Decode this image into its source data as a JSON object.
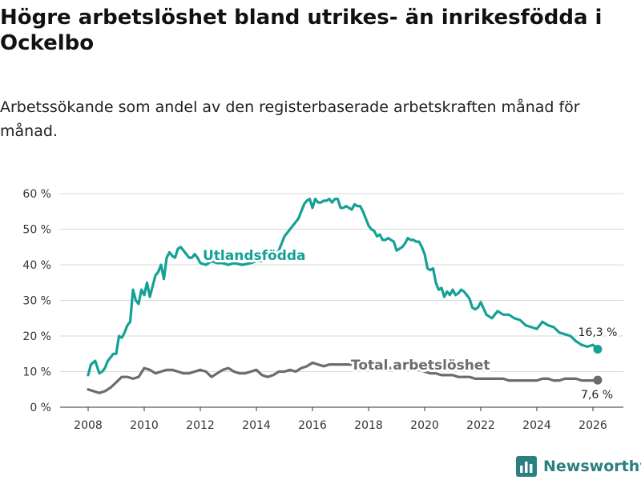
{
  "title": "Högre arbetslöshet bland utrikes- än inrikesfödda i Ockelbo",
  "subtitle": "Arbetssökande som andel av den registerbaserade arbetskraften månad för månad.",
  "brand": {
    "name": "Newsworthy",
    "icon": "newsworthy-logo-icon"
  },
  "colors": {
    "foreign_born": "#14a195",
    "total": "#6b6b70",
    "grid": "#d9d9d9",
    "brand": "#2a7f80"
  },
  "chart_data": {
    "type": "line",
    "title": "Högre arbetslöshet bland utrikes- än inrikesfödda i Ockelbo",
    "xlabel": "",
    "ylabel": "",
    "xlim": [
      2007.6,
      2026.9
    ],
    "ylim": [
      0,
      60
    ],
    "yticks": [
      0,
      10,
      20,
      30,
      40,
      50,
      60
    ],
    "ytick_labels": [
      "0 %",
      "10 %",
      "20 %",
      "30 %",
      "40 %",
      "50 %",
      "60 %"
    ],
    "xticks": [
      2008,
      2010,
      2012,
      2014,
      2016,
      2018,
      2020,
      2022,
      2024,
      2026
    ],
    "xtick_labels": [
      "2008",
      "2010",
      "2012",
      "2014",
      "2016",
      "2018",
      "2020",
      "2022",
      "2024",
      "2026"
    ],
    "grid": "horizontal",
    "legend": "inline labels",
    "series": [
      {
        "name": "Utlandsfödda",
        "end_label": "16,3 %",
        "x": [
          2008.0,
          2008.1,
          2008.25,
          2008.4,
          2008.5,
          2008.6,
          2008.7,
          2008.8,
          2008.9,
          2009.0,
          2009.1,
          2009.2,
          2009.3,
          2009.4,
          2009.5,
          2009.6,
          2009.7,
          2009.8,
          2009.9,
          2010.0,
          2010.1,
          2010.2,
          2010.3,
          2010.4,
          2010.5,
          2010.6,
          2010.7,
          2010.8,
          2010.9,
          2011.0,
          2011.1,
          2011.2,
          2011.3,
          2011.5,
          2011.6,
          2011.7,
          2011.8,
          2011.9,
          2012.0,
          2012.2,
          2012.4,
          2012.6,
          2012.8,
          2013.0,
          2013.2,
          2013.5,
          2013.8,
          2014.0,
          2014.2,
          2014.5,
          2014.8,
          2015.0,
          2015.1,
          2015.2,
          2015.3,
          2015.4,
          2015.5,
          2015.6,
          2015.7,
          2015.8,
          2015.9,
          2016.0,
          2016.1,
          2016.2,
          2016.3,
          2016.4,
          2016.5,
          2016.6,
          2016.7,
          2016.8,
          2016.9,
          2017.0,
          2017.1,
          2017.2,
          2017.3,
          2017.4,
          2017.5,
          2017.6,
          2017.7,
          2017.8,
          2017.9,
          2018.0,
          2018.1,
          2018.2,
          2018.3,
          2018.4,
          2018.5,
          2018.6,
          2018.7,
          2018.8,
          2018.9,
          2019.0,
          2019.1,
          2019.2,
          2019.3,
          2019.4,
          2019.5,
          2019.6,
          2019.7,
          2019.8,
          2019.9,
          2020.0,
          2020.1,
          2020.2,
          2020.3,
          2020.4,
          2020.5,
          2020.6,
          2020.7,
          2020.8,
          2020.9,
          2021.0,
          2021.1,
          2021.2,
          2021.3,
          2021.4,
          2021.5,
          2021.6,
          2021.7,
          2021.8,
          2021.9,
          2022.0,
          2022.2,
          2022.4,
          2022.6,
          2022.8,
          2023.0,
          2023.2,
          2023.4,
          2023.6,
          2023.8,
          2024.0,
          2024.2,
          2024.4,
          2024.6,
          2024.8,
          2025.0,
          2025.2,
          2025.4,
          2025.6,
          2025.8,
          2026.0,
          2026.17
        ],
        "values": [
          9,
          12,
          13,
          9.5,
          10,
          11,
          13,
          14,
          15,
          15,
          20,
          19.5,
          21,
          23,
          24,
          33,
          30,
          29,
          33,
          31.5,
          35,
          31,
          34,
          37,
          38,
          40,
          36,
          42,
          43.5,
          42.5,
          42,
          44.5,
          45,
          43,
          42,
          42,
          43,
          42,
          40.5,
          40,
          41,
          40.5,
          40.5,
          40,
          40.5,
          40,
          40.5,
          41,
          41,
          42,
          44,
          48,
          49,
          50,
          51,
          52,
          53,
          55,
          57,
          58,
          58.5,
          56,
          58.5,
          57.5,
          57.5,
          58,
          58,
          58.5,
          57.5,
          58.5,
          58.5,
          56,
          56,
          56.5,
          56,
          55.5,
          57,
          56.5,
          56.5,
          55,
          53,
          51,
          50,
          49.5,
          48,
          48.5,
          47,
          47,
          47.5,
          47,
          46.5,
          44,
          44.5,
          45,
          46,
          47.5,
          47,
          47,
          46.5,
          46.5,
          45,
          43,
          39,
          38.5,
          39,
          35,
          33,
          33.5,
          31,
          32.5,
          31.5,
          33,
          31.5,
          32,
          33,
          32.5,
          31.5,
          30.5,
          28,
          27.5,
          28,
          29.5,
          26,
          25,
          27,
          26,
          26,
          25,
          24.5,
          23,
          22.5,
          22,
          24,
          23,
          22.5,
          21,
          20.5,
          20,
          18.5,
          17.5,
          17,
          17.5,
          16.3
        ]
      },
      {
        "name": "Total arbetslöshet",
        "end_label": "7,6 %",
        "x": [
          2008.0,
          2008.2,
          2008.4,
          2008.6,
          2008.8,
          2009.0,
          2009.2,
          2009.4,
          2009.6,
          2009.8,
          2010.0,
          2010.2,
          2010.4,
          2010.6,
          2010.8,
          2011.0,
          2011.2,
          2011.4,
          2011.6,
          2011.8,
          2012.0,
          2012.2,
          2012.4,
          2012.6,
          2012.8,
          2013.0,
          2013.2,
          2013.4,
          2013.6,
          2013.8,
          2014.0,
          2014.2,
          2014.4,
          2014.6,
          2014.8,
          2015.0,
          2015.2,
          2015.4,
          2015.6,
          2015.8,
          2016.0,
          2016.2,
          2016.4,
          2016.6,
          2016.8,
          2017.0,
          2017.2,
          2017.4,
          2017.6,
          2017.8,
          2018.0,
          2018.2,
          2018.4,
          2018.6,
          2018.8,
          2019.0,
          2019.2,
          2019.4,
          2019.6,
          2019.8,
          2020.0,
          2020.2,
          2020.4,
          2020.6,
          2020.8,
          2021.0,
          2021.2,
          2021.4,
          2021.6,
          2021.8,
          2022.0,
          2022.2,
          2022.4,
          2022.6,
          2022.8,
          2023.0,
          2023.2,
          2023.4,
          2023.6,
          2023.8,
          2024.0,
          2024.2,
          2024.4,
          2024.6,
          2024.8,
          2025.0,
          2025.2,
          2025.4,
          2025.6,
          2025.8,
          2026.0,
          2026.17
        ],
        "values": [
          5,
          4.5,
          4,
          4.5,
          5.5,
          7,
          8.5,
          8.5,
          8,
          8.5,
          11,
          10.5,
          9.5,
          10,
          10.5,
          10.5,
          10,
          9.5,
          9.5,
          10,
          10.5,
          10,
          8.5,
          9.5,
          10.5,
          11,
          10,
          9.5,
          9.5,
          10,
          10.5,
          9,
          8.5,
          9,
          10,
          10,
          10.5,
          10,
          11,
          11.5,
          12.5,
          12,
          11.5,
          12,
          12,
          12,
          12,
          12,
          11.5,
          11.5,
          11.5,
          11,
          11,
          11,
          11,
          11,
          10.5,
          10.5,
          10.5,
          10.5,
          10,
          9.5,
          9.5,
          9,
          9,
          9,
          8.5,
          8.5,
          8.5,
          8,
          8,
          8,
          8,
          8,
          8,
          7.5,
          7.5,
          7.5,
          7.5,
          7.5,
          7.5,
          8,
          8,
          7.5,
          7.5,
          8,
          8,
          8,
          7.5,
          7.5,
          7.5,
          7.6
        ]
      }
    ]
  }
}
